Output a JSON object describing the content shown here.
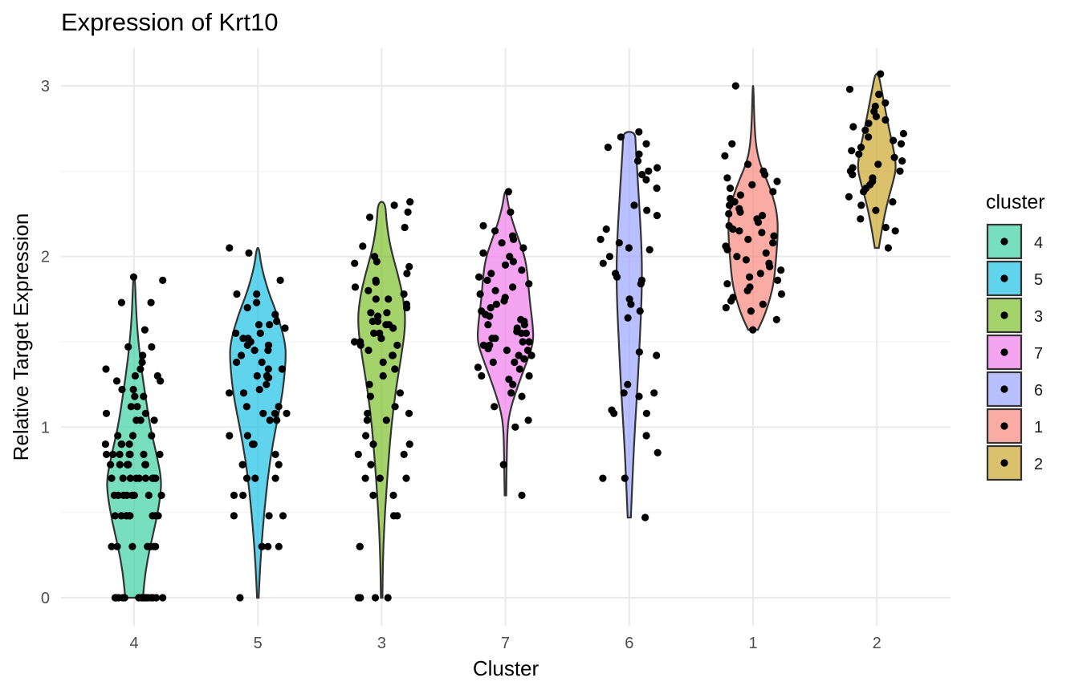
{
  "chart_data": {
    "type": "violin",
    "title": "Expression of Krt10",
    "xlabel": "Cluster",
    "ylabel": "Relative Target Expression",
    "categories": [
      "4",
      "5",
      "3",
      "7",
      "6",
      "1",
      "2"
    ],
    "ylim": [
      -0.15,
      3.2
    ],
    "yticks": [
      0,
      1,
      2,
      3
    ],
    "grid": true,
    "legend": {
      "title": "cluster",
      "position": "right",
      "entries": [
        {
          "label": "4",
          "color": "#3ED2A2"
        },
        {
          "label": "5",
          "color": "#1DC0E6"
        },
        {
          "label": "3",
          "color": "#7DC02C"
        },
        {
          "label": "7",
          "color": "#F07DEA"
        },
        {
          "label": "6",
          "color": "#9AA5FF"
        },
        {
          "label": "1",
          "color": "#F8897E"
        },
        {
          "label": "2",
          "color": "#CCA72E"
        }
      ]
    },
    "series": [
      {
        "cluster": "4",
        "color": "#3ED2A2",
        "min": 0.0,
        "max": 1.88,
        "profile": [
          [
            0.0,
            0.22
          ],
          [
            0.15,
            0.28
          ],
          [
            0.3,
            0.4
          ],
          [
            0.45,
            0.55
          ],
          [
            0.6,
            0.66
          ],
          [
            0.7,
            0.68
          ],
          [
            0.85,
            0.55
          ],
          [
            1.0,
            0.4
          ],
          [
            1.2,
            0.27
          ],
          [
            1.4,
            0.15
          ],
          [
            1.6,
            0.07
          ],
          [
            1.75,
            0.04
          ],
          [
            1.88,
            0.02
          ]
        ],
        "points": [
          0,
          0,
          0,
          0,
          0,
          0,
          0,
          0,
          0,
          0,
          0,
          0,
          0,
          0,
          0,
          0,
          0.3,
          0.3,
          0.3,
          0.3,
          0.3,
          0.3,
          0.3,
          0.48,
          0.48,
          0.48,
          0.48,
          0.48,
          0.48,
          0.48,
          0.48,
          0.48,
          0.6,
          0.6,
          0.6,
          0.6,
          0.6,
          0.6,
          0.6,
          0.6,
          0.7,
          0.7,
          0.7,
          0.7,
          0.7,
          0.7,
          0.7,
          0.7,
          0.7,
          0.78,
          0.78,
          0.78,
          0.78,
          0.78,
          0.78,
          0.78,
          0.84,
          0.84,
          0.84,
          0.84,
          0.84,
          0.84,
          0.84,
          0.9,
          0.9,
          0.9,
          0.9,
          0.95,
          0.95,
          0.95,
          1.04,
          1.04,
          1.04,
          1.08,
          1.08,
          1.12,
          1.12,
          1.18,
          1.18,
          1.22,
          1.22,
          1.27,
          1.27,
          1.3,
          1.3,
          1.34,
          1.34,
          1.38,
          1.42,
          1.47,
          1.47,
          1.57,
          1.73,
          1.73,
          1.86,
          1.88
        ]
      },
      {
        "cluster": "5",
        "color": "#1DC0E6",
        "min": 0.0,
        "max": 2.05,
        "profile": [
          [
            0.0,
            0.02
          ],
          [
            0.2,
            0.06
          ],
          [
            0.4,
            0.12
          ],
          [
            0.6,
            0.2
          ],
          [
            0.8,
            0.3
          ],
          [
            1.0,
            0.45
          ],
          [
            1.2,
            0.62
          ],
          [
            1.4,
            0.7
          ],
          [
            1.5,
            0.68
          ],
          [
            1.65,
            0.5
          ],
          [
            1.8,
            0.25
          ],
          [
            1.95,
            0.08
          ],
          [
            2.05,
            0.03
          ]
        ],
        "points": [
          0,
          0.3,
          0.3,
          0.3,
          0.3,
          0.48,
          0.48,
          0.48,
          0.6,
          0.6,
          0.7,
          0.7,
          0.7,
          0.78,
          0.78,
          0.84,
          0.9,
          0.9,
          0.95,
          0.95,
          1.04,
          1.04,
          1.08,
          1.08,
          1.08,
          1.12,
          1.12,
          1.2,
          1.2,
          1.22,
          1.25,
          1.29,
          1.29,
          1.3,
          1.3,
          1.34,
          1.34,
          1.38,
          1.38,
          1.42,
          1.45,
          1.45,
          1.48,
          1.48,
          1.5,
          1.5,
          1.52,
          1.52,
          1.55,
          1.55,
          1.58,
          1.6,
          1.6,
          1.62,
          1.66,
          1.7,
          1.73,
          1.78,
          1.78,
          1.86,
          2.02,
          2.05
        ]
      },
      {
        "cluster": "3",
        "color": "#7DC02C",
        "min": 0.0,
        "max": 2.32,
        "profile": [
          [
            0.0,
            0.02
          ],
          [
            0.2,
            0.03
          ],
          [
            0.4,
            0.06
          ],
          [
            0.6,
            0.11
          ],
          [
            0.8,
            0.17
          ],
          [
            1.0,
            0.24
          ],
          [
            1.2,
            0.34
          ],
          [
            1.4,
            0.48
          ],
          [
            1.6,
            0.6
          ],
          [
            1.75,
            0.55
          ],
          [
            1.9,
            0.4
          ],
          [
            2.05,
            0.22
          ],
          [
            2.2,
            0.12
          ],
          [
            2.32,
            0.09
          ]
        ],
        "points": [
          0,
          0,
          0,
          0,
          0.3,
          0.3,
          0.48,
          0.48,
          0.6,
          0.6,
          0.7,
          0.7,
          0.7,
          0.78,
          0.84,
          0.84,
          0.9,
          0.9,
          0.95,
          1.04,
          1.04,
          1.08,
          1.08,
          1.12,
          1.18,
          1.2,
          1.25,
          1.3,
          1.34,
          1.38,
          1.42,
          1.42,
          1.45,
          1.48,
          1.48,
          1.5,
          1.5,
          1.52,
          1.55,
          1.55,
          1.58,
          1.6,
          1.6,
          1.62,
          1.62,
          1.65,
          1.67,
          1.67,
          1.7,
          1.72,
          1.75,
          1.75,
          1.78,
          1.8,
          1.82,
          1.85,
          1.86,
          1.9,
          1.94,
          1.96,
          1.97,
          2.0,
          2.06,
          2.17,
          2.23,
          2.26,
          2.3,
          2.32
        ]
      },
      {
        "cluster": "7",
        "color": "#F07DEA",
        "min": 0.6,
        "max": 2.38,
        "profile": [
          [
            0.6,
            0.02
          ],
          [
            0.8,
            0.03
          ],
          [
            1.0,
            0.05
          ],
          [
            1.1,
            0.12
          ],
          [
            1.2,
            0.25
          ],
          [
            1.3,
            0.4
          ],
          [
            1.4,
            0.56
          ],
          [
            1.5,
            0.7
          ],
          [
            1.6,
            0.68
          ],
          [
            1.75,
            0.6
          ],
          [
            1.9,
            0.55
          ],
          [
            2.0,
            0.48
          ],
          [
            2.1,
            0.33
          ],
          [
            2.2,
            0.18
          ],
          [
            2.3,
            0.07
          ],
          [
            2.38,
            0.02
          ]
        ],
        "points": [
          0.6,
          0.78,
          1.0,
          1.04,
          1.12,
          1.18,
          1.2,
          1.25,
          1.28,
          1.3,
          1.3,
          1.34,
          1.35,
          1.38,
          1.38,
          1.4,
          1.42,
          1.42,
          1.45,
          1.45,
          1.46,
          1.48,
          1.48,
          1.5,
          1.5,
          1.52,
          1.52,
          1.55,
          1.55,
          1.56,
          1.58,
          1.6,
          1.6,
          1.62,
          1.63,
          1.65,
          1.66,
          1.68,
          1.7,
          1.72,
          1.74,
          1.76,
          1.78,
          1.8,
          1.82,
          1.84,
          1.86,
          1.88,
          1.9,
          1.92,
          1.95,
          1.97,
          2.0,
          2.02,
          2.05,
          2.08,
          2.1,
          2.12,
          2.15,
          2.18,
          2.26,
          2.38
        ]
      },
      {
        "cluster": "6",
        "color": "#9AA5FF",
        "min": 0.47,
        "max": 2.73,
        "profile": [
          [
            0.47,
            0.04
          ],
          [
            0.7,
            0.08
          ],
          [
            0.9,
            0.12
          ],
          [
            1.1,
            0.17
          ],
          [
            1.3,
            0.22
          ],
          [
            1.5,
            0.26
          ],
          [
            1.7,
            0.3
          ],
          [
            1.9,
            0.32
          ],
          [
            2.1,
            0.3
          ],
          [
            2.3,
            0.25
          ],
          [
            2.5,
            0.2
          ],
          [
            2.65,
            0.16
          ],
          [
            2.73,
            0.15
          ]
        ],
        "points": [
          0.47,
          0.7,
          0.7,
          0.85,
          0.95,
          1.08,
          1.08,
          1.1,
          1.18,
          1.2,
          1.2,
          1.25,
          1.42,
          1.44,
          1.64,
          1.68,
          1.72,
          1.75,
          1.84,
          1.86,
          1.88,
          1.9,
          1.96,
          2.0,
          2.04,
          2.05,
          2.08,
          2.1,
          2.16,
          2.24,
          2.27,
          2.3,
          2.4,
          2.45,
          2.48,
          2.5,
          2.52,
          2.56,
          2.6,
          2.64,
          2.66,
          2.7,
          2.73
        ]
      },
      {
        "cluster": "1",
        "color": "#F8897E",
        "min": 1.57,
        "max": 3.0,
        "profile": [
          [
            1.57,
            0.12
          ],
          [
            1.65,
            0.28
          ],
          [
            1.75,
            0.42
          ],
          [
            1.85,
            0.52
          ],
          [
            2.0,
            0.58
          ],
          [
            2.15,
            0.62
          ],
          [
            2.25,
            0.6
          ],
          [
            2.35,
            0.5
          ],
          [
            2.45,
            0.34
          ],
          [
            2.55,
            0.16
          ],
          [
            2.65,
            0.07
          ],
          [
            2.8,
            0.03
          ],
          [
            3.0,
            0.01
          ]
        ],
        "points": [
          1.57,
          1.63,
          1.68,
          1.7,
          1.72,
          1.74,
          1.76,
          1.78,
          1.8,
          1.82,
          1.84,
          1.86,
          1.88,
          1.9,
          1.92,
          1.94,
          1.96,
          1.98,
          2.0,
          2.02,
          2.04,
          2.06,
          2.08,
          2.1,
          2.12,
          2.14,
          2.15,
          2.16,
          2.18,
          2.2,
          2.22,
          2.24,
          2.25,
          2.26,
          2.28,
          2.3,
          2.32,
          2.34,
          2.36,
          2.38,
          2.4,
          2.42,
          2.44,
          2.46,
          2.48,
          2.5,
          2.54,
          2.59,
          2.66,
          3.0
        ]
      },
      {
        "cluster": "2",
        "color": "#CCA72E",
        "min": 2.05,
        "max": 3.07,
        "profile": [
          [
            2.05,
            0.05
          ],
          [
            2.15,
            0.12
          ],
          [
            2.25,
            0.2
          ],
          [
            2.35,
            0.3
          ],
          [
            2.45,
            0.42
          ],
          [
            2.52,
            0.48
          ],
          [
            2.6,
            0.44
          ],
          [
            2.7,
            0.35
          ],
          [
            2.8,
            0.26
          ],
          [
            2.9,
            0.18
          ],
          [
            3.0,
            0.1
          ],
          [
            3.07,
            0.04
          ]
        ],
        "points": [
          2.05,
          2.15,
          2.17,
          2.22,
          2.27,
          2.3,
          2.32,
          2.35,
          2.38,
          2.4,
          2.42,
          2.44,
          2.46,
          2.48,
          2.5,
          2.5,
          2.52,
          2.54,
          2.56,
          2.58,
          2.6,
          2.62,
          2.64,
          2.66,
          2.68,
          2.7,
          2.72,
          2.74,
          2.76,
          2.78,
          2.8,
          2.82,
          2.85,
          2.88,
          2.9,
          2.95,
          2.98,
          3.07
        ]
      }
    ]
  }
}
